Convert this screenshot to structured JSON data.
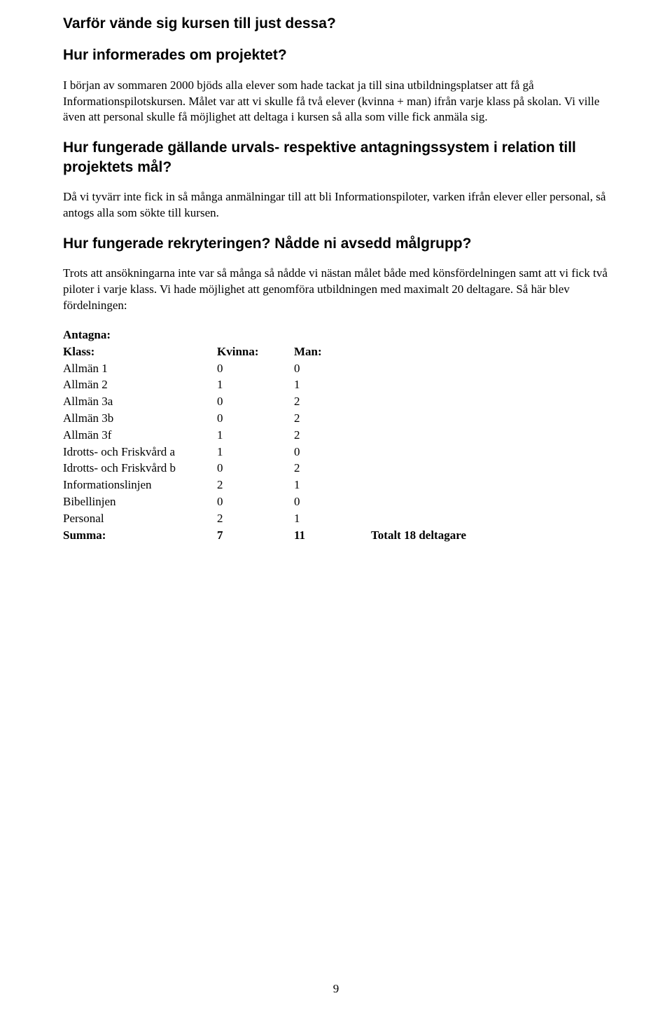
{
  "h1": "Varför vände sig kursen till just dessa?",
  "h2": "Hur informerades om projektet?",
  "p1": "I början av sommaren 2000 bjöds alla elever som hade tackat ja till sina utbildningsplatser att få gå Informationspilotskursen. Målet var att vi skulle få två elever (kvinna + man) ifrån varje klass på skolan. Vi ville även att personal skulle få möjlighet att deltaga i kursen så alla som ville fick anmäla sig.",
  "h3": "Hur fungerade gällande urvals- respektive antagningssystem i relation till projektets mål?",
  "p2": "Då vi tyvärr inte fick in så många anmälningar till att bli Informationspiloter, varken ifrån elever eller personal, så antogs alla som sökte till kursen.",
  "h4": "Hur fungerade rekryteringen? Nådde ni avsedd målgrupp?",
  "p3": "Trots att ansökningarna inte var så många så nådde vi nästan målet både med könsfördelningen samt att vi fick två piloter i varje klass. Vi hade möjlighet att genomföra utbildningen med maximalt 20 deltagare. Så här blev fördelningen:",
  "table": {
    "title": "Antagna:",
    "header": {
      "klass": "Klass:",
      "kvinna": "Kvinna:",
      "man": "Man:"
    },
    "rows": [
      {
        "klass": "Allmän 1",
        "kvinna": "0",
        "man": "0"
      },
      {
        "klass": "Allmän 2",
        "kvinna": "1",
        "man": "1"
      },
      {
        "klass": "Allmän 3a",
        "kvinna": "0",
        "man": "2"
      },
      {
        "klass": "Allmän 3b",
        "kvinna": "0",
        "man": "2"
      },
      {
        "klass": "Allmän 3f",
        "kvinna": "1",
        "man": "2"
      },
      {
        "klass": "Idrotts- och Friskvård a",
        "kvinna": "1",
        "man": "0"
      },
      {
        "klass": "Idrotts- och Friskvård b",
        "kvinna": "0",
        "man": "2"
      },
      {
        "klass": "Informationslinjen",
        "kvinna": "2",
        "man": "1"
      },
      {
        "klass": "Bibellinjen",
        "kvinna": "0",
        "man": "0"
      },
      {
        "klass": "Personal",
        "kvinna": "2",
        "man": "1"
      }
    ],
    "sum": {
      "label": "Summa:",
      "kvinna": "7",
      "man": "11",
      "total": "Totalt 18 deltagare"
    }
  },
  "pagenum": "9"
}
